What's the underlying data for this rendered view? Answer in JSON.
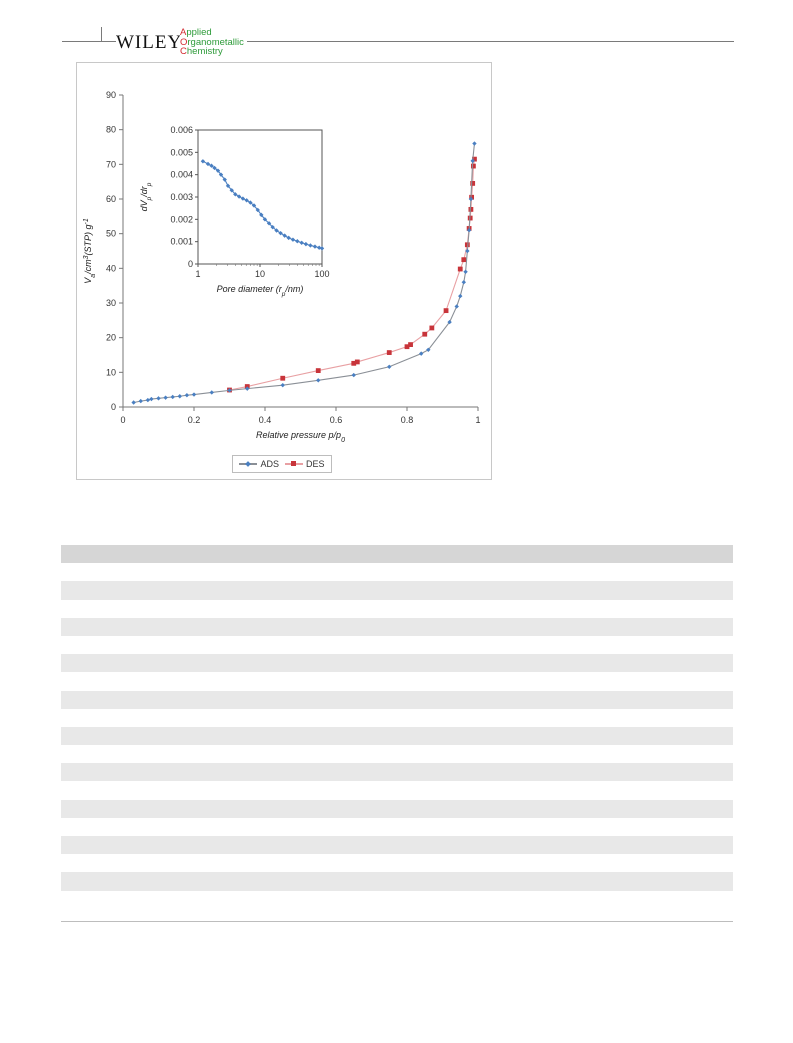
{
  "header": {
    "publisher": "WILEY",
    "journal_lines": [
      "Applied",
      "Organometallic",
      "Chemistry"
    ]
  },
  "colors": {
    "ads": "#4a7fc1",
    "des": "#c8343a",
    "journal_green": "#2e9b3a",
    "journal_red": "#d2282e"
  },
  "chart_data": [
    {
      "type": "line",
      "xlabel": "Relative pressure p/p0",
      "ylabel": "Va/cm3(STP) g-1",
      "xlim": [
        0,
        1
      ],
      "ylim": [
        0,
        90
      ],
      "x_ticks": [
        "0",
        "0.2",
        "0.4",
        "0.6",
        "0.8",
        "1"
      ],
      "y_ticks": [
        "0",
        "10",
        "20",
        "30",
        "40",
        "50",
        "60",
        "70",
        "80",
        "90"
      ],
      "legend": "bottom",
      "series": [
        {
          "name": "ADS",
          "x": [
            0.03,
            0.05,
            0.07,
            0.08,
            0.1,
            0.12,
            0.14,
            0.16,
            0.18,
            0.2,
            0.25,
            0.3,
            0.35,
            0.45,
            0.55,
            0.65,
            0.75,
            0.84,
            0.86,
            0.92,
            0.94,
            0.95,
            0.96,
            0.965,
            0.97,
            0.975,
            0.98,
            0.985,
            0.99
          ],
          "y": [
            1.3,
            1.7,
            2.0,
            2.3,
            2.5,
            2.7,
            2.9,
            3.1,
            3.4,
            3.6,
            4.2,
            4.8,
            5.3,
            6.3,
            7.7,
            9.2,
            11.6,
            15.4,
            16.5,
            24.5,
            29,
            32,
            36,
            39,
            45,
            51,
            60,
            71,
            76
          ]
        },
        {
          "name": "DES",
          "x": [
            0.3,
            0.35,
            0.45,
            0.55,
            0.65,
            0.66,
            0.75,
            0.8,
            0.81,
            0.85,
            0.87,
            0.91,
            0.95,
            0.96,
            0.97,
            0.975,
            0.978,
            0.98,
            0.982,
            0.985,
            0.987,
            0.99
          ],
          "y": [
            4.9,
            5.9,
            8.3,
            10.5,
            12.6,
            13.0,
            15.7,
            17.4,
            18.0,
            21.0,
            22.8,
            27.8,
            39.8,
            42.5,
            46.8,
            51.5,
            54.5,
            57.0,
            60.5,
            64.5,
            69.5,
            71.5
          ]
        }
      ]
    },
    {
      "type": "line",
      "xlabel": "Pore diameter (rp/nm)",
      "ylabel": "dVp/drp",
      "xscale": "log",
      "xlim": [
        1,
        100
      ],
      "ylim": [
        0,
        0.006
      ],
      "x_ticks": [
        "1",
        "10",
        "100"
      ],
      "y_ticks": [
        "0",
        "0.001",
        "0.002",
        "0.003",
        "0.004",
        "0.005",
        "0.006"
      ],
      "series": [
        {
          "x": [
            1.2,
            1.45,
            1.65,
            1.85,
            2.1,
            2.35,
            2.7,
            3.05,
            3.5,
            4.0,
            4.6,
            5.3,
            6.1,
            7.0,
            8.0,
            9.2,
            10.5,
            12.0,
            14.0,
            16.0,
            18.5,
            21.5,
            25.0,
            29.0,
            34.0,
            40.0,
            47.0,
            55.0,
            65.0,
            77.0,
            90.0,
            100.0
          ],
          "y": [
            0.0046,
            0.00448,
            0.0044,
            0.0043,
            0.00418,
            0.004,
            0.00378,
            0.0035,
            0.0033,
            0.00312,
            0.00302,
            0.00293,
            0.00285,
            0.00275,
            0.00262,
            0.00242,
            0.0022,
            0.002,
            0.00182,
            0.00165,
            0.0015,
            0.00138,
            0.00127,
            0.00117,
            0.00109,
            0.00102,
            0.00095,
            0.00089,
            0.00083,
            0.00078,
            0.00073,
            0.0007
          ]
        }
      ]
    }
  ]
}
